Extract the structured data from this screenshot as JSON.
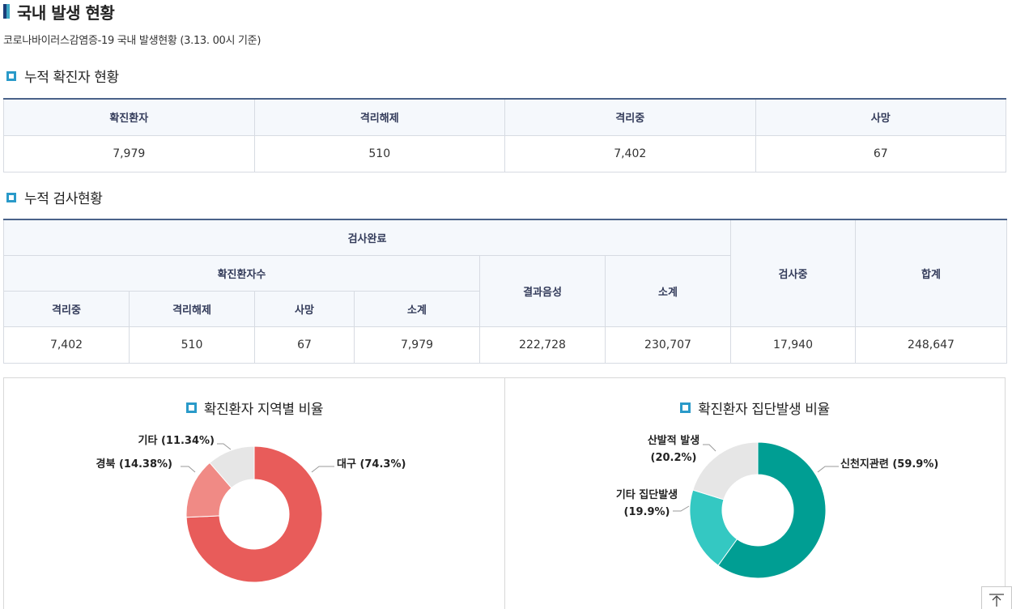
{
  "page": {
    "title": "국내 발생 현황",
    "subtitle": "코로나바이러스감염증-19 국내 발생현황 (3.13. 00시 기준)"
  },
  "cumulative": {
    "section_title": "누적 확진자 현황",
    "headers": [
      "확진환자",
      "격리해제",
      "격리중",
      "사망"
    ],
    "values": [
      "7,979",
      "510",
      "7,402",
      "67"
    ]
  },
  "tests": {
    "section_title": "누적 검사현황",
    "h_completed": "검사완료",
    "h_confirmed": "확진환자수",
    "h_negative": "결과음성",
    "h_subtotal": "소계",
    "h_testing": "검사중",
    "h_total": "합계",
    "sub_headers": [
      "격리중",
      "격리해제",
      "사망",
      "소계"
    ],
    "values": [
      "7,402",
      "510",
      "67",
      "7,979",
      "222,728",
      "230,707",
      "17,940",
      "248,647"
    ]
  },
  "charts": {
    "region": {
      "title": "확진환자 지역별 비율",
      "labels": [
        "대구 (74.3%)",
        "경북 (14.38%)",
        "기타 (11.34%)"
      ]
    },
    "cluster": {
      "title": "확진환자 집단발생 비율",
      "labels": {
        "main": "신천지관련 (59.9%)",
        "other_line1": "기타 집단발생",
        "other_line2": "(19.9%)",
        "sporadic_line1": "산발적 발생",
        "sporadic_line2": "(20.2%)"
      }
    }
  },
  "chart_data": [
    {
      "type": "pie",
      "title": "확진환자 지역별 비율",
      "categories": [
        "대구",
        "경북",
        "기타"
      ],
      "values": [
        74.3,
        14.38,
        11.34
      ],
      "colors": [
        "#e85c5a",
        "#f08a85",
        "#e6e6e6"
      ],
      "donut": true
    },
    {
      "type": "pie",
      "title": "확진환자 집단발생 비율",
      "categories": [
        "신천지관련",
        "기타 집단발생",
        "산발적 발생"
      ],
      "values": [
        59.9,
        19.9,
        20.2
      ],
      "colors": [
        "#009e93",
        "#34c8c2",
        "#e6e6e6"
      ],
      "donut": true
    }
  ],
  "icons": {
    "top_button": "arrow-up-to-top-icon"
  }
}
